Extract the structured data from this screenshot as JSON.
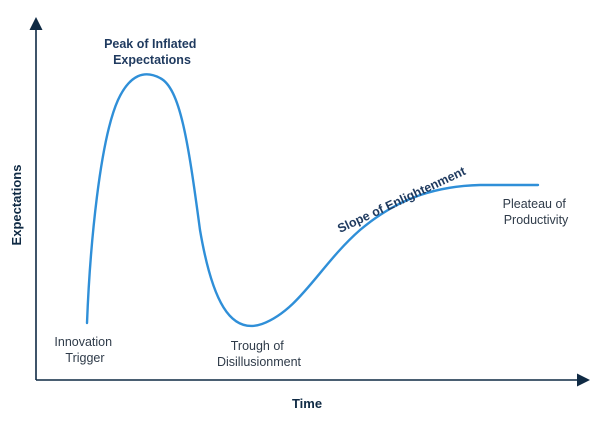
{
  "colors": {
    "axis": "#0f2a44",
    "curve": "#2f8fd8",
    "label": "#2f3b49",
    "label_emphasis": "#1f3a5f"
  },
  "axes": {
    "y_label": "Expectations",
    "x_label": "Time"
  },
  "phases": {
    "innovation_trigger": {
      "line1": "Innovation",
      "line2": "Trigger"
    },
    "peak": {
      "line1": "Peak of Inflated",
      "line2": "Expectations"
    },
    "trough": {
      "line1": "Trough of",
      "line2": "Disillusionment"
    },
    "slope": {
      "line1": "Slope of Enlightenment"
    },
    "plateau": {
      "line1": "Pleateau of",
      "line2": "Productivity"
    }
  }
}
